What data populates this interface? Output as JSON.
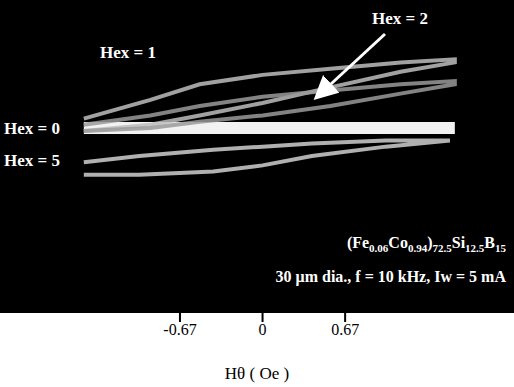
{
  "chart_data": {
    "type": "line",
    "xlabel": "Hθ ( Oe )",
    "xlim": [
      -2.13,
      2.04
    ],
    "xticks": [
      -0.67,
      0,
      0.67
    ],
    "ylim": [
      0,
      100
    ],
    "tick_labels": "x",
    "annotations": [
      "(Fe0.06Co0.94)72.5Si12.5B15",
      "30 μm dia., f = 10 kHz, Iw = 5 mA"
    ],
    "series": [
      {
        "name": "Hex = 0",
        "color": "#ffffff",
        "x": [
          -1.45,
          1.56
        ],
        "values": [
          59,
          59
        ]
      },
      {
        "name": "Hex = 5",
        "color": "#cfcfcf",
        "x": [
          -1.45,
          -1.0,
          -0.4,
          0,
          0.4,
          1.0,
          1.52,
          1.52,
          1.0,
          0.4,
          0,
          -0.4,
          -1.0,
          -1.45
        ],
        "values": [
          44,
          44,
          45,
          47,
          50,
          53,
          55,
          55,
          55,
          54,
          53,
          52,
          50,
          48
        ]
      },
      {
        "name": "Hex = 1",
        "color": "#bdbdbd",
        "x": [
          -1.45,
          -0.91,
          -0.51,
          0,
          0.55,
          1.12,
          1.56,
          1.56,
          1.12,
          0.55,
          0,
          -0.51,
          -0.91,
          -1.45
        ],
        "values": [
          58,
          60,
          63,
          67,
          72,
          77,
          80,
          81,
          80,
          78,
          76,
          73,
          68,
          62
        ]
      },
      {
        "name": "Hex = 2",
        "color": "#9a9a9a",
        "x": [
          -1.45,
          -0.91,
          -0.51,
          0,
          0.55,
          1.12,
          1.56,
          1.56,
          1.12,
          0.55,
          0,
          -0.51,
          -0.91,
          -1.45
        ],
        "values": [
          58,
          59,
          61,
          63,
          66,
          70,
          73,
          74,
          73,
          71,
          69,
          66,
          63,
          60
        ]
      }
    ]
  }
}
